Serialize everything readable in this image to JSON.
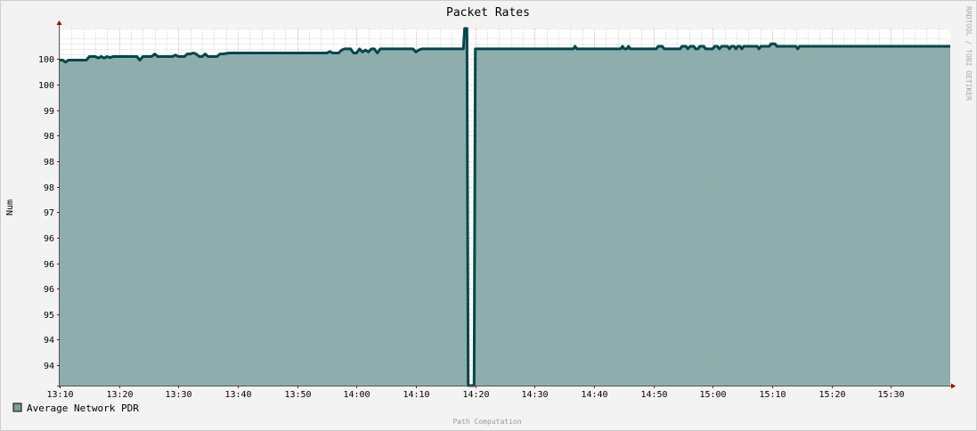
{
  "chart_data": {
    "type": "area",
    "title": "Packet Rates",
    "ylabel": "Num",
    "xlabel": "",
    "footer": "Path Computation",
    "watermark": "RRDTOOL / TOBI OETIKER",
    "x_unit": "minutes after 13:10",
    "xlim": [
      0,
      150
    ],
    "ylim": [
      93.6,
      100.6
    ],
    "y_tick_values": [
      94,
      94.5,
      95,
      95.5,
      96,
      96.5,
      97,
      97.5,
      98,
      98.5,
      99,
      99.5,
      100
    ],
    "y_tick_labels": [
      "94",
      "94",
      "95",
      "96",
      "96",
      "96",
      "97",
      "98",
      "98",
      "98",
      "99",
      "100",
      "100"
    ],
    "x_tick_values": [
      0,
      10,
      20,
      30,
      40,
      50,
      60,
      70,
      80,
      90,
      100,
      110,
      120,
      130,
      140
    ],
    "x_tick_labels": [
      "13:10",
      "13:20",
      "13:30",
      "13:40",
      "13:50",
      "14:00",
      "14:10",
      "14:20",
      "14:30",
      "14:40",
      "14:50",
      "15:00",
      "15:10",
      "15:20",
      "15:30"
    ],
    "grid": true,
    "legend": "bottom-left",
    "colors": {
      "fill": "#88aaa9",
      "line": "#00474a",
      "legend_swatch": "#7e9d9b",
      "grid_minor": "#dcdcdc",
      "grid_major": "#e6b4b4",
      "axis": "#555555",
      "arrow": "#aa0000"
    },
    "series": [
      {
        "name": "Average Network PDR",
        "points": [
          [
            0,
            99.98
          ],
          [
            0.5,
            99.98
          ],
          [
            1,
            99.94
          ],
          [
            1.5,
            99.98
          ],
          [
            4.5,
            99.98
          ],
          [
            5,
            100.05
          ],
          [
            6,
            100.05
          ],
          [
            6.5,
            100.02
          ],
          [
            7,
            100.05
          ],
          [
            7.5,
            100.02
          ],
          [
            8,
            100.05
          ],
          [
            8.5,
            100.03
          ],
          [
            9,
            100.05
          ],
          [
            13,
            100.05
          ],
          [
            13.5,
            99.98
          ],
          [
            14,
            100.05
          ],
          [
            15.5,
            100.05
          ],
          [
            16,
            100.1
          ],
          [
            16.5,
            100.05
          ],
          [
            19,
            100.05
          ],
          [
            19.5,
            100.08
          ],
          [
            20,
            100.05
          ],
          [
            21,
            100.05
          ],
          [
            21.5,
            100.1
          ],
          [
            22,
            100.1
          ],
          [
            22.5,
            100.12
          ],
          [
            23,
            100.1
          ],
          [
            23.5,
            100.05
          ],
          [
            24,
            100.05
          ],
          [
            24.5,
            100.1
          ],
          [
            25,
            100.05
          ],
          [
            26.5,
            100.05
          ],
          [
            27,
            100.1
          ],
          [
            27.5,
            100.1
          ],
          [
            28.5,
            100.12
          ],
          [
            45,
            100.12
          ],
          [
            45.5,
            100.15
          ],
          [
            46,
            100.12
          ],
          [
            47,
            100.12
          ],
          [
            47.5,
            100.18
          ],
          [
            48,
            100.2
          ],
          [
            49,
            100.2
          ],
          [
            49.5,
            100.12
          ],
          [
            50,
            100.12
          ],
          [
            50.5,
            100.2
          ],
          [
            51,
            100.14
          ],
          [
            51.5,
            100.18
          ],
          [
            52,
            100.14
          ],
          [
            52.5,
            100.2
          ],
          [
            53,
            100.2
          ],
          [
            53.5,
            100.12
          ],
          [
            54,
            100.2
          ],
          [
            59.5,
            100.2
          ],
          [
            60,
            100.14
          ],
          [
            60.5,
            100.18
          ],
          [
            61,
            100.2
          ],
          [
            68,
            100.2
          ],
          [
            68.2,
            100.6
          ],
          [
            68.6,
            100.6
          ],
          [
            68.8,
            93.6
          ],
          [
            69.8,
            93.6
          ],
          [
            70,
            100.2
          ],
          [
            86.5,
            100.2
          ],
          [
            86.8,
            100.25
          ],
          [
            87.1,
            100.2
          ],
          [
            94.5,
            100.2
          ],
          [
            94.8,
            100.25
          ],
          [
            95.1,
            100.2
          ],
          [
            95.5,
            100.2
          ],
          [
            95.8,
            100.25
          ],
          [
            96.1,
            100.2
          ],
          [
            100.5,
            100.2
          ],
          [
            100.8,
            100.25
          ],
          [
            101.5,
            100.25
          ],
          [
            101.8,
            100.2
          ],
          [
            104.5,
            100.2
          ],
          [
            104.8,
            100.25
          ],
          [
            105.5,
            100.25
          ],
          [
            105.8,
            100.2
          ],
          [
            106.2,
            100.25
          ],
          [
            106.8,
            100.25
          ],
          [
            107.1,
            100.2
          ],
          [
            107.5,
            100.2
          ],
          [
            107.8,
            100.25
          ],
          [
            108.5,
            100.25
          ],
          [
            108.8,
            100.2
          ],
          [
            110,
            100.2
          ],
          [
            110.3,
            100.25
          ],
          [
            110.8,
            100.25
          ],
          [
            111.1,
            100.2
          ],
          [
            111.5,
            100.25
          ],
          [
            112.5,
            100.25
          ],
          [
            112.8,
            100.2
          ],
          [
            113.1,
            100.25
          ],
          [
            113.6,
            100.25
          ],
          [
            113.9,
            100.2
          ],
          [
            114.2,
            100.25
          ],
          [
            114.6,
            100.25
          ],
          [
            114.9,
            100.2
          ],
          [
            115.2,
            100.25
          ],
          [
            117.5,
            100.25
          ],
          [
            117.8,
            100.2
          ],
          [
            118.1,
            100.25
          ],
          [
            119.5,
            100.25
          ],
          [
            119.8,
            100.3
          ],
          [
            120.5,
            100.3
          ],
          [
            120.8,
            100.25
          ],
          [
            124,
            100.25
          ],
          [
            124.3,
            100.2
          ],
          [
            124.6,
            100.25
          ],
          [
            150,
            100.25
          ]
        ]
      }
    ]
  }
}
